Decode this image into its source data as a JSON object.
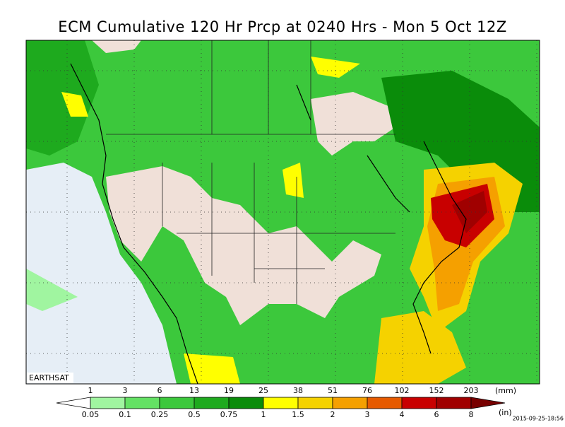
{
  "title": "ECM Cumulative 120 Hr Prcp at 0240 Hrs - Mon 5 Oct 12Z",
  "source_label": "EARTHSAT",
  "timestamp": "2015-09-25-18:56",
  "colorbar": {
    "mm_labels": [
      1,
      3,
      6,
      13,
      19,
      25,
      38,
      51,
      76,
      102,
      152,
      203
    ],
    "mm_unit": "(mm)",
    "in_labels": [
      0.05,
      0.1,
      0.25,
      0.5,
      0.75,
      1,
      1.5,
      2,
      3,
      4,
      6,
      8
    ],
    "in_unit": "(in)",
    "colors": [
      "#ffffff",
      "#a0f5a0",
      "#64e164",
      "#3cc83c",
      "#1eaa1e",
      "#0a8c0a",
      "#ffff00",
      "#f5d200",
      "#f5a000",
      "#e65a00",
      "#c80000",
      "#a00000",
      "#780000"
    ]
  }
}
